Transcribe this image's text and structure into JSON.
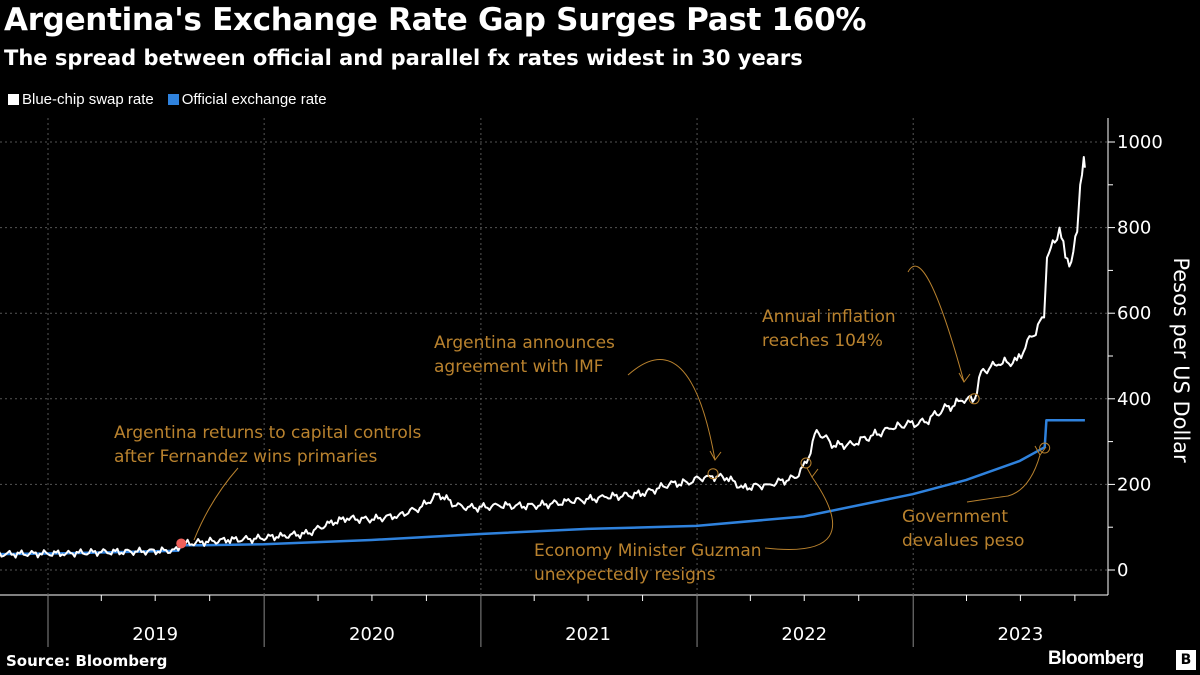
{
  "chart_data": {
    "type": "line",
    "title": "Argentina's Exchange Rate Gap Surges Past 160%",
    "subtitle": "The spread between official and parallel fx rates widest in 30 years",
    "ylabel": "Pesos per US Dollar",
    "ylim": [
      0,
      1000
    ],
    "yticks": [
      "0",
      "200",
      "400",
      "600",
      "800",
      "1000"
    ],
    "xticks": [
      "2019",
      "2020",
      "2021",
      "2022",
      "2023"
    ],
    "xlim": [
      "2018-10-01",
      "2023-12-31"
    ],
    "grid": true,
    "legend_position": "top-left",
    "source": "Source: Bloomberg",
    "logo": "Bloomberg",
    "colors": {
      "blue_chip": "#ffffff",
      "official": "#2f82dd",
      "annotation": "#b9822e",
      "event_marker": "#f0605a"
    },
    "series": [
      {
        "name": "Blue-chip swap rate",
        "points": [
          [
            "2018-10-01",
            37
          ],
          [
            "2018-12-01",
            38
          ],
          [
            "2019-02-01",
            39
          ],
          [
            "2019-04-01",
            42
          ],
          [
            "2019-06-01",
            43
          ],
          [
            "2019-08-09",
            46
          ],
          [
            "2019-08-14",
            60
          ],
          [
            "2019-09-15",
            65
          ],
          [
            "2019-11-01",
            70
          ],
          [
            "2019-12-15",
            73
          ],
          [
            "2020-02-01",
            80
          ],
          [
            "2020-03-15",
            85
          ],
          [
            "2020-04-20",
            110
          ],
          [
            "2020-05-20",
            120
          ],
          [
            "2020-07-01",
            118
          ],
          [
            "2020-08-15",
            128
          ],
          [
            "2020-09-20",
            145
          ],
          [
            "2020-10-22",
            178
          ],
          [
            "2020-11-20",
            150
          ],
          [
            "2020-12-20",
            145
          ],
          [
            "2021-02-01",
            150
          ],
          [
            "2021-04-01",
            150
          ],
          [
            "2021-06-01",
            160
          ],
          [
            "2021-08-01",
            170
          ],
          [
            "2021-10-01",
            178
          ],
          [
            "2021-11-15",
            200
          ],
          [
            "2021-12-15",
            205
          ],
          [
            "2022-01-20",
            220
          ],
          [
            "2022-02-20",
            215
          ],
          [
            "2022-03-20",
            192
          ],
          [
            "2022-05-01",
            200
          ],
          [
            "2022-06-15",
            215
          ],
          [
            "2022-07-05",
            250
          ],
          [
            "2022-07-22",
            327
          ],
          [
            "2022-08-20",
            290
          ],
          [
            "2022-09-20",
            295
          ],
          [
            "2022-10-25",
            315
          ],
          [
            "2022-11-25",
            330
          ],
          [
            "2022-12-20",
            340
          ],
          [
            "2023-01-20",
            345
          ],
          [
            "2023-02-20",
            375
          ],
          [
            "2023-03-25",
            395
          ],
          [
            "2023-04-15",
            400
          ],
          [
            "2023-04-26",
            465
          ],
          [
            "2023-05-25",
            480
          ],
          [
            "2023-06-25",
            490
          ],
          [
            "2023-07-20",
            545
          ],
          [
            "2023-08-10",
            590
          ],
          [
            "2023-08-15",
            730
          ],
          [
            "2023-08-28",
            765
          ],
          [
            "2023-09-05",
            800
          ],
          [
            "2023-09-15",
            730
          ],
          [
            "2023-09-25",
            720
          ],
          [
            "2023-10-05",
            790
          ],
          [
            "2023-10-10",
            900
          ],
          [
            "2023-10-16",
            965
          ],
          [
            "2023-10-18",
            940
          ]
        ]
      },
      {
        "name": "Official exchange rate",
        "points": [
          [
            "2018-10-01",
            37
          ],
          [
            "2019-02-01",
            39
          ],
          [
            "2019-06-01",
            43
          ],
          [
            "2019-08-09",
            45
          ],
          [
            "2019-08-14",
            58
          ],
          [
            "2019-09-15",
            58
          ],
          [
            "2019-12-31",
            60
          ],
          [
            "2020-06-30",
            70
          ],
          [
            "2020-12-31",
            84
          ],
          [
            "2021-06-30",
            96
          ],
          [
            "2021-12-31",
            103
          ],
          [
            "2022-06-30",
            125
          ],
          [
            "2022-12-31",
            177
          ],
          [
            "2023-03-31",
            210
          ],
          [
            "2023-06-30",
            255
          ],
          [
            "2023-08-11",
            287
          ],
          [
            "2023-08-14",
            350
          ],
          [
            "2023-10-18",
            350
          ]
        ]
      }
    ],
    "annotations": [
      {
        "id": "capital-controls",
        "lines": [
          "Argentina returns to capital controls",
          "after Fernandez wins primaries"
        ],
        "date": "2019-08-14",
        "value": 62
      },
      {
        "id": "imf",
        "lines": [
          "Argentina announces",
          "agreement with IMF"
        ],
        "date": "2022-01-28",
        "value": 225
      },
      {
        "id": "guzman",
        "lines": [
          "Economy Minister Guzman",
          "unexpectedly resigns"
        ],
        "date": "2022-07-04",
        "value": 250
      },
      {
        "id": "inflation",
        "lines": [
          "Annual inflation",
          "reaches 104%"
        ],
        "date": "2023-04-14",
        "value": 400
      },
      {
        "id": "devaluation",
        "lines": [
          "Government",
          "devalues peso"
        ],
        "date": "2023-08-11",
        "value": 285
      }
    ]
  }
}
